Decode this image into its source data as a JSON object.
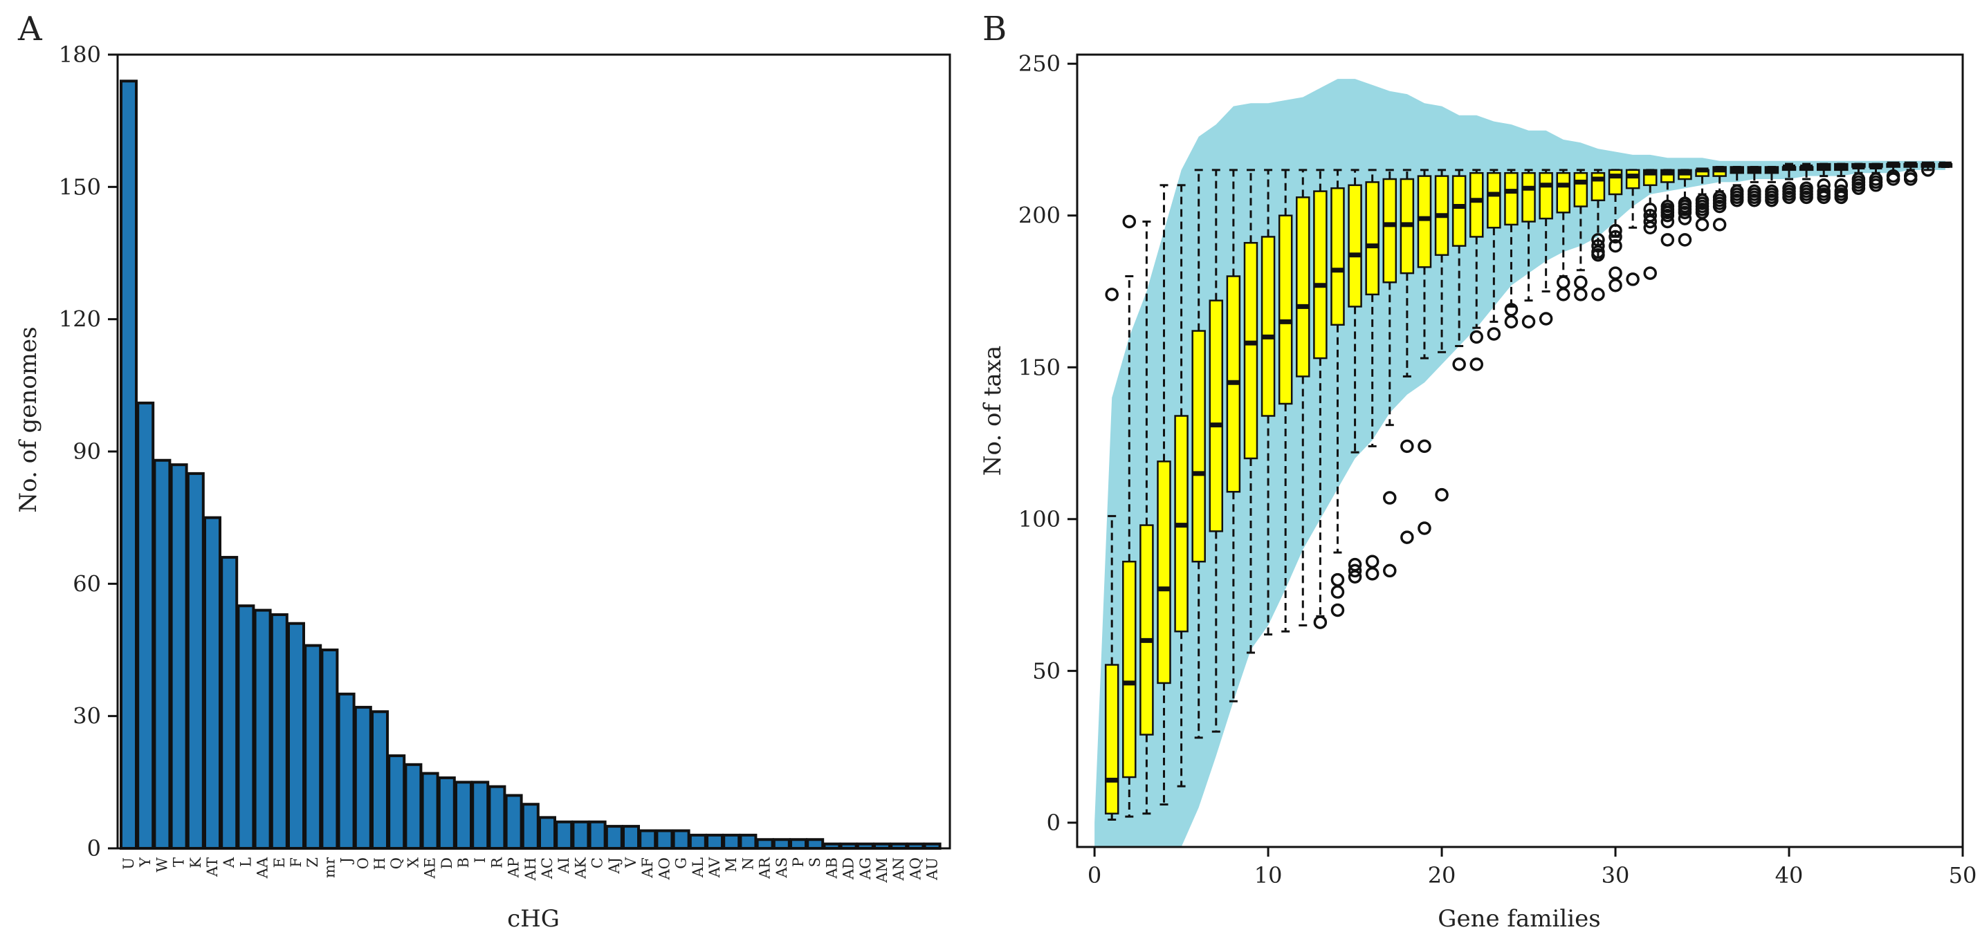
{
  "chart_data": [
    {
      "panel_label": "A",
      "type": "bar",
      "xlabel": "cHG",
      "ylabel": "No. of genomes",
      "ylim": [
        0,
        180
      ],
      "yticks": [
        0,
        30,
        60,
        90,
        120,
        150,
        180
      ],
      "bar_color": "#1f77b4",
      "categories": [
        "U",
        "Y",
        "W",
        "T",
        "K",
        "AT",
        "A",
        "L",
        "AA",
        "E",
        "F",
        "Z",
        "mr",
        "J",
        "O",
        "H",
        "Q",
        "X",
        "AE",
        "D",
        "B",
        "I",
        "R",
        "AP",
        "AH",
        "AC",
        "AI",
        "AK",
        "C",
        "AJ",
        "V",
        "AF",
        "AO",
        "G",
        "AL",
        "AV",
        "M",
        "N",
        "AR",
        "AS",
        "P",
        "S",
        "AB",
        "AD",
        "AG",
        "AM",
        "AN",
        "AQ",
        "AU"
      ],
      "values": [
        174,
        101,
        88,
        87,
        85,
        75,
        66,
        55,
        54,
        53,
        51,
        46,
        45,
        35,
        32,
        31,
        21,
        19,
        17,
        16,
        15,
        15,
        14,
        12,
        10,
        7,
        6,
        6,
        6,
        5,
        5,
        4,
        4,
        4,
        3,
        3,
        3,
        3,
        2,
        2,
        2,
        2,
        1,
        1,
        1,
        1,
        1,
        1,
        1
      ]
    },
    {
      "panel_label": "B",
      "type": "box",
      "xlabel": "Gene families",
      "ylabel": "No. of taxa",
      "xlim": [
        -1,
        50
      ],
      "ylim": [
        -8,
        253
      ],
      "xticks": [
        0,
        10,
        20,
        30,
        40,
        50
      ],
      "yticks": [
        0,
        50,
        100,
        150,
        200,
        250
      ],
      "box_color": "#ffff00",
      "band_color": "#9ad8e3",
      "band": {
        "x": [
          0,
          1,
          2,
          3,
          4,
          5,
          6,
          7,
          8,
          9,
          10,
          11,
          12,
          13,
          14,
          15,
          16,
          17,
          18,
          19,
          20,
          21,
          22,
          23,
          24,
          25,
          26,
          27,
          28,
          29,
          30,
          31,
          32,
          33,
          34,
          35,
          36,
          37,
          38,
          39,
          40,
          41,
          42,
          43,
          44,
          45,
          46,
          47,
          48,
          49
        ],
        "upper": [
          0,
          140,
          160,
          175,
          195,
          215,
          226,
          230,
          236,
          237,
          237,
          238,
          239,
          242,
          245,
          245,
          243,
          241,
          240,
          237,
          236,
          233,
          233,
          231,
          230,
          228,
          228,
          225,
          224,
          222,
          221,
          220,
          220,
          219,
          219,
          219,
          218,
          218,
          218,
          218,
          218,
          218,
          218,
          218,
          218,
          218,
          218,
          218,
          218,
          218
        ],
        "lower": [
          -8,
          -8,
          -8,
          -8,
          -8,
          -8,
          5,
          22,
          40,
          57,
          65,
          77,
          90,
          100,
          110,
          120,
          126,
          135,
          141,
          145,
          151,
          157,
          163,
          170,
          177,
          181,
          185,
          188,
          190,
          193,
          198,
          203,
          207,
          208,
          209,
          210,
          211,
          211,
          212,
          212,
          212,
          213,
          213,
          213,
          214,
          214,
          214,
          215,
          215,
          215
        ]
      },
      "boxes": [
        {
          "x": 1,
          "q1": 3,
          "median": 14,
          "q3": 52,
          "lo": 1,
          "hi": 101,
          "out": [
            174
          ]
        },
        {
          "x": 2,
          "q1": 15,
          "median": 46,
          "q3": 86,
          "lo": 2,
          "hi": 180,
          "out": [
            198
          ]
        },
        {
          "x": 3,
          "q1": 29,
          "median": 60,
          "q3": 98,
          "lo": 3,
          "hi": 198,
          "out": []
        },
        {
          "x": 4,
          "q1": 46,
          "median": 77,
          "q3": 119,
          "lo": 6,
          "hi": 210,
          "out": []
        },
        {
          "x": 5,
          "q1": 63,
          "median": 98,
          "q3": 134,
          "lo": 12,
          "hi": 210,
          "out": []
        },
        {
          "x": 6,
          "q1": 86,
          "median": 115,
          "q3": 162,
          "lo": 28,
          "hi": 215,
          "out": []
        },
        {
          "x": 7,
          "q1": 96,
          "median": 131,
          "q3": 172,
          "lo": 30,
          "hi": 215,
          "out": []
        },
        {
          "x": 8,
          "q1": 109,
          "median": 145,
          "q3": 180,
          "lo": 40,
          "hi": 215,
          "out": []
        },
        {
          "x": 9,
          "q1": 120,
          "median": 158,
          "q3": 191,
          "lo": 56,
          "hi": 215,
          "out": []
        },
        {
          "x": 10,
          "q1": 134,
          "median": 160,
          "q3": 193,
          "lo": 62,
          "hi": 215,
          "out": []
        },
        {
          "x": 11,
          "q1": 138,
          "median": 165,
          "q3": 200,
          "lo": 63,
          "hi": 215,
          "out": []
        },
        {
          "x": 12,
          "q1": 147,
          "median": 170,
          "q3": 206,
          "lo": 65,
          "hi": 215,
          "out": []
        },
        {
          "x": 13,
          "q1": 153,
          "median": 177,
          "q3": 208,
          "lo": 68,
          "hi": 215,
          "out": [
            66
          ]
        },
        {
          "x": 14,
          "q1": 164,
          "median": 182,
          "q3": 209,
          "lo": 89,
          "hi": 215,
          "out": [
            70,
            76,
            80
          ]
        },
        {
          "x": 15,
          "q1": 170,
          "median": 187,
          "q3": 210,
          "lo": 122,
          "hi": 215,
          "out": [
            81,
            83,
            85
          ]
        },
        {
          "x": 16,
          "q1": 174,
          "median": 190,
          "q3": 211,
          "lo": 124,
          "hi": 215,
          "out": [
            82,
            86
          ]
        },
        {
          "x": 17,
          "q1": 178,
          "median": 197,
          "q3": 212,
          "lo": 131,
          "hi": 215,
          "out": [
            83,
            107
          ]
        },
        {
          "x": 18,
          "q1": 181,
          "median": 197,
          "q3": 212,
          "lo": 147,
          "hi": 215,
          "out": [
            94,
            124
          ]
        },
        {
          "x": 19,
          "q1": 183,
          "median": 199,
          "q3": 213,
          "lo": 153,
          "hi": 215,
          "out": [
            97,
            124
          ]
        },
        {
          "x": 20,
          "q1": 187,
          "median": 200,
          "q3": 213,
          "lo": 155,
          "hi": 215,
          "out": [
            108
          ]
        },
        {
          "x": 21,
          "q1": 190,
          "median": 203,
          "q3": 213,
          "lo": 157,
          "hi": 215,
          "out": [
            151
          ]
        },
        {
          "x": 22,
          "q1": 193,
          "median": 205,
          "q3": 214,
          "lo": 163,
          "hi": 215,
          "out": [
            151,
            160
          ]
        },
        {
          "x": 23,
          "q1": 196,
          "median": 207,
          "q3": 214,
          "lo": 165,
          "hi": 215,
          "out": [
            161
          ]
        },
        {
          "x": 24,
          "q1": 197,
          "median": 208,
          "q3": 214,
          "lo": 170,
          "hi": 215,
          "out": [
            165,
            169
          ]
        },
        {
          "x": 25,
          "q1": 198,
          "median": 209,
          "q3": 214,
          "lo": 172,
          "hi": 215,
          "out": [
            165
          ]
        },
        {
          "x": 26,
          "q1": 199,
          "median": 210,
          "q3": 214,
          "lo": 175,
          "hi": 215,
          "out": [
            166
          ]
        },
        {
          "x": 27,
          "q1": 201,
          "median": 210,
          "q3": 214,
          "lo": 180,
          "hi": 215,
          "out": [
            174,
            178
          ]
        },
        {
          "x": 28,
          "q1": 203,
          "median": 211,
          "q3": 214,
          "lo": 182,
          "hi": 215,
          "out": [
            174,
            178
          ]
        },
        {
          "x": 29,
          "q1": 205,
          "median": 212,
          "q3": 214,
          "lo": 186,
          "hi": 215,
          "out": [
            174,
            187,
            188,
            190,
            192
          ]
        },
        {
          "x": 30,
          "q1": 207,
          "median": 213,
          "q3": 215,
          "lo": 193,
          "hi": 215,
          "out": [
            177,
            181,
            190,
            193,
            195
          ]
        },
        {
          "x": 31,
          "q1": 209,
          "median": 213,
          "q3": 215,
          "lo": 196,
          "hi": 215,
          "out": [
            179
          ]
        },
        {
          "x": 32,
          "q1": 210,
          "median": 214,
          "q3": 215,
          "lo": 200,
          "hi": 215,
          "out": [
            181,
            196,
            198,
            200,
            202
          ]
        },
        {
          "x": 33,
          "q1": 211,
          "median": 214,
          "q3": 215,
          "lo": 203,
          "hi": 215,
          "out": [
            192,
            198,
            200,
            201,
            202,
            203
          ]
        },
        {
          "x": 34,
          "q1": 212,
          "median": 214,
          "q3": 215,
          "lo": 205,
          "hi": 215,
          "out": [
            192,
            199,
            201,
            202,
            203,
            204
          ]
        },
        {
          "x": 35,
          "q1": 213,
          "median": 215,
          "q3": 215,
          "lo": 207,
          "hi": 215,
          "out": [
            197,
            201,
            202,
            203,
            204,
            205
          ]
        },
        {
          "x": 36,
          "q1": 213,
          "median": 215,
          "q3": 216,
          "lo": 208,
          "hi": 216,
          "out": [
            197,
            203,
            204,
            205,
            206
          ]
        },
        {
          "x": 37,
          "q1": 214,
          "median": 215,
          "q3": 216,
          "lo": 210,
          "hi": 216,
          "out": [
            205,
            206,
            207,
            208
          ]
        },
        {
          "x": 38,
          "q1": 214,
          "median": 215,
          "q3": 216,
          "lo": 211,
          "hi": 216,
          "out": [
            205,
            206,
            207,
            208
          ]
        },
        {
          "x": 39,
          "q1": 214,
          "median": 215,
          "q3": 216,
          "lo": 211,
          "hi": 216,
          "out": [
            205,
            206,
            207,
            208
          ]
        },
        {
          "x": 40,
          "q1": 215,
          "median": 216,
          "q3": 216,
          "lo": 212,
          "hi": 217,
          "out": [
            206,
            207,
            208,
            209
          ]
        },
        {
          "x": 41,
          "q1": 215,
          "median": 216,
          "q3": 216,
          "lo": 212,
          "hi": 217,
          "out": [
            206,
            207,
            208,
            209
          ]
        },
        {
          "x": 42,
          "q1": 215,
          "median": 216,
          "q3": 217,
          "lo": 213,
          "hi": 217,
          "out": [
            206,
            207,
            208,
            210
          ]
        },
        {
          "x": 43,
          "q1": 215,
          "median": 216,
          "q3": 217,
          "lo": 213,
          "hi": 217,
          "out": [
            206,
            207,
            208,
            210
          ]
        },
        {
          "x": 44,
          "q1": 216,
          "median": 216,
          "q3": 217,
          "lo": 214,
          "hi": 217,
          "out": [
            209,
            210,
            211,
            212
          ]
        },
        {
          "x": 45,
          "q1": 216,
          "median": 216,
          "q3": 217,
          "lo": 214,
          "hi": 217,
          "out": [
            210,
            211,
            212
          ]
        },
        {
          "x": 46,
          "q1": 216,
          "median": 217,
          "q3": 217,
          "lo": 214,
          "hi": 217,
          "out": [
            212,
            213
          ]
        },
        {
          "x": 47,
          "q1": 216,
          "median": 217,
          "q3": 217,
          "lo": 215,
          "hi": 217,
          "out": [
            212,
            213
          ]
        },
        {
          "x": 48,
          "q1": 216,
          "median": 217,
          "q3": 217,
          "lo": 215,
          "hi": 217,
          "out": [
            215
          ]
        },
        {
          "x": 49,
          "q1": 216,
          "median": 217,
          "q3": 217,
          "lo": 216,
          "hi": 217,
          "out": []
        }
      ]
    }
  ]
}
